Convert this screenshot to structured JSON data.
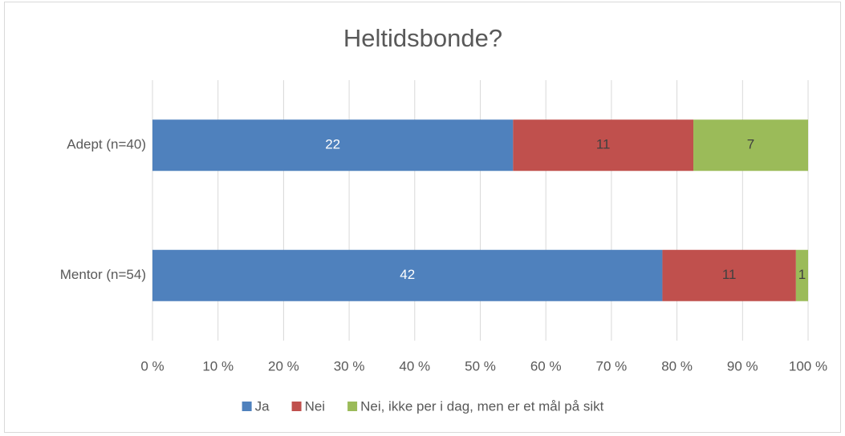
{
  "chart_data": {
    "type": "bar",
    "orientation": "horizontal",
    "stack": "percent",
    "title": "Heltidsbonde?",
    "categories": [
      "Adept (n=40)",
      "Mentor (n=54)"
    ],
    "series": [
      {
        "name": "Ja",
        "color": "#4f81bd",
        "label_color": "#ffffff",
        "values": [
          22,
          42
        ]
      },
      {
        "name": "Nei",
        "color": "#c0504d",
        "label_color": "#404040",
        "values": [
          11,
          11
        ]
      },
      {
        "name": "Nei, ikke per i dag, men er et mål på sikt",
        "color": "#9bbb59",
        "label_color": "#404040",
        "values": [
          7,
          1
        ]
      }
    ],
    "xlim": [
      0,
      100
    ],
    "xticks": [
      {
        "value": 0,
        "label": "0 %"
      },
      {
        "value": 10,
        "label": "10 %"
      },
      {
        "value": 20,
        "label": "20 %"
      },
      {
        "value": 30,
        "label": "30 %"
      },
      {
        "value": 40,
        "label": "40 %"
      },
      {
        "value": 50,
        "label": "50 %"
      },
      {
        "value": 60,
        "label": "60 %"
      },
      {
        "value": 70,
        "label": "70 %"
      },
      {
        "value": 80,
        "label": "80 %"
      },
      {
        "value": 90,
        "label": "90 %"
      },
      {
        "value": 100,
        "label": "100 %"
      }
    ],
    "grid": true,
    "legend": "bottom"
  }
}
